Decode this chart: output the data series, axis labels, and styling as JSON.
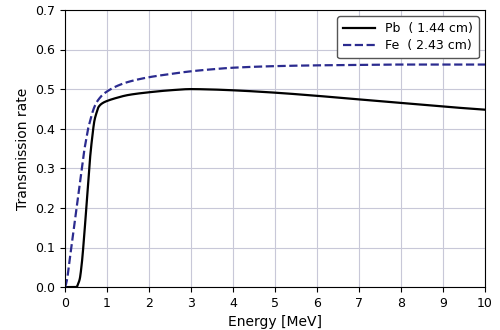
{
  "title": "",
  "xlabel": "Energy [MeV]",
  "ylabel": "Transmission rate",
  "xlim": [
    0,
    10
  ],
  "ylim": [
    0.0,
    0.7
  ],
  "xticks": [
    0,
    1,
    2,
    3,
    4,
    5,
    6,
    7,
    8,
    9,
    10
  ],
  "yticks": [
    0.0,
    0.1,
    0.2,
    0.3,
    0.4,
    0.5,
    0.6,
    0.7
  ],
  "legend_pb": "Pb  ( 1.44 cm)",
  "legend_fe": "Fe  ( 2.43 cm)",
  "pb_color": "#000000",
  "fe_color": "#2b2b8f",
  "grid_color": "#c8c8d8",
  "background_color": "#ffffff",
  "pb_data_x": [
    0.0,
    0.28,
    0.3,
    0.35,
    0.4,
    0.45,
    0.5,
    0.55,
    0.6,
    0.65,
    0.7,
    0.75,
    0.8,
    0.9,
    1.0,
    1.2,
    1.5,
    2.0,
    2.5,
    3.0,
    3.5,
    4.0,
    5.0,
    6.0,
    7.0,
    8.0,
    9.0,
    10.0
  ],
  "pb_data_y": [
    0.0,
    0.0,
    0.005,
    0.02,
    0.06,
    0.12,
    0.19,
    0.26,
    0.33,
    0.38,
    0.42,
    0.44,
    0.455,
    0.465,
    0.47,
    0.477,
    0.485,
    0.492,
    0.497,
    0.5,
    0.499,
    0.497,
    0.491,
    0.483,
    0.474,
    0.465,
    0.456,
    0.448
  ],
  "fe_data_x": [
    0.0,
    0.05,
    0.1,
    0.15,
    0.2,
    0.25,
    0.3,
    0.35,
    0.4,
    0.45,
    0.5,
    0.55,
    0.6,
    0.65,
    0.7,
    0.75,
    0.8,
    0.9,
    1.0,
    1.2,
    1.5,
    2.0,
    2.5,
    3.0,
    3.5,
    4.0,
    5.0,
    6.0,
    7.0,
    8.0,
    9.0,
    10.0
  ],
  "fe_data_y": [
    0.0,
    0.02,
    0.06,
    0.1,
    0.14,
    0.18,
    0.22,
    0.26,
    0.3,
    0.34,
    0.37,
    0.4,
    0.42,
    0.44,
    0.455,
    0.466,
    0.474,
    0.486,
    0.494,
    0.506,
    0.518,
    0.53,
    0.538,
    0.545,
    0.55,
    0.554,
    0.558,
    0.56,
    0.561,
    0.562,
    0.562,
    0.562
  ]
}
